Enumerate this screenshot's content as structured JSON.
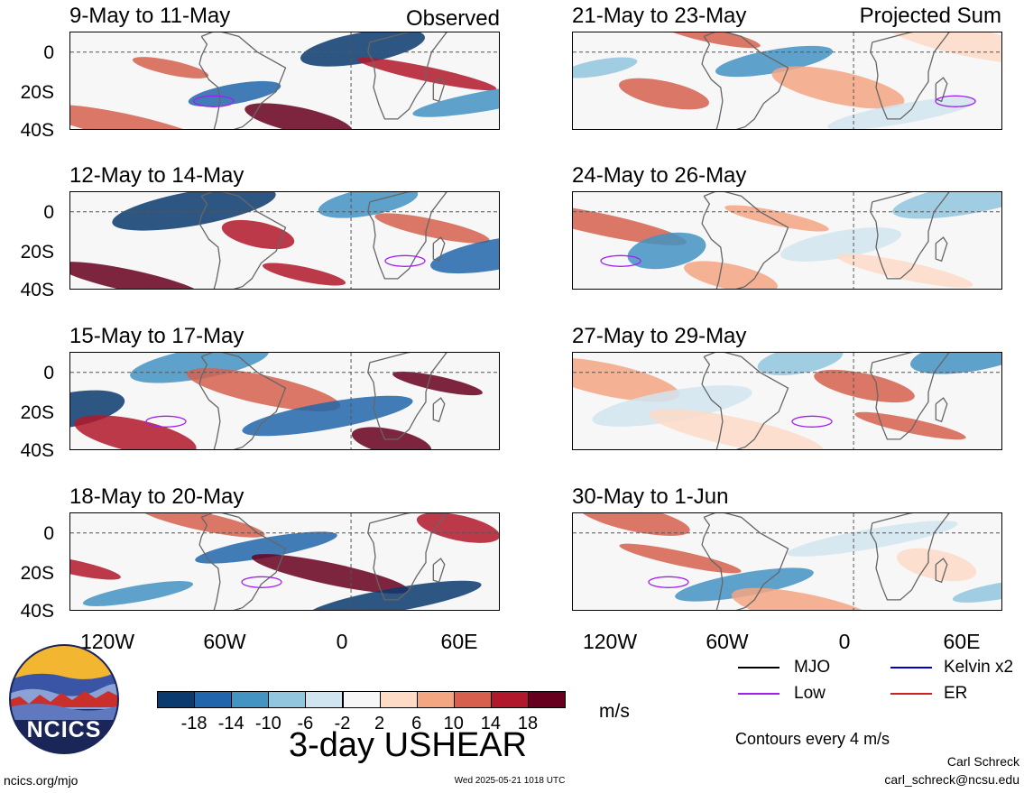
{
  "panels": [
    {
      "title": "9-May to 11-May",
      "tag": "Observed",
      "column": "observed"
    },
    {
      "title": "12-May to 14-May",
      "tag": "",
      "column": "observed"
    },
    {
      "title": "15-May to 17-May",
      "tag": "",
      "column": "observed"
    },
    {
      "title": "18-May to 20-May",
      "tag": "",
      "column": "observed"
    },
    {
      "title": "21-May to 23-May",
      "tag": "Projected Sum",
      "column": "projected"
    },
    {
      "title": "24-May to 26-May",
      "tag": "",
      "column": "projected"
    },
    {
      "title": "27-May to 29-May",
      "tag": "",
      "column": "projected"
    },
    {
      "title": "30-May to 1-Jun",
      "tag": "",
      "column": "projected"
    }
  ],
  "y_axis": {
    "ticks": [
      "0",
      "20S",
      "40S"
    ]
  },
  "x_axis": {
    "ticks": [
      "120W",
      "60W",
      "0",
      "60E"
    ]
  },
  "colorbar": {
    "labels": [
      "-18",
      "-14",
      "-10",
      "-6",
      "-2",
      "2",
      "6",
      "10",
      "14",
      "18"
    ],
    "colors": [
      "#0b3a6e",
      "#2166ac",
      "#4393c3",
      "#92c5de",
      "#d1e5f0",
      "#f7f7f7",
      "#fddbc7",
      "#f4a582",
      "#d6604d",
      "#b2182b",
      "#67001f"
    ],
    "units": "m/s"
  },
  "legend": [
    {
      "label": "MJO",
      "color": "#000000"
    },
    {
      "label": "Kelvin x2",
      "color": "#0000cc"
    },
    {
      "label": "Low",
      "color": "#a020f0"
    },
    {
      "label": "ER",
      "color": "#cc2222"
    }
  ],
  "main_title": "3-day USHEAR",
  "contour_note": "Contours every 4 m/s",
  "logo_text": "NCICS",
  "footer": {
    "url": "ncics.org/mjo",
    "timestamp": "Wed 2025-05-21 1018 UTC",
    "author": "Carl Schreck",
    "email": "carl_schreck@ncsu.edu"
  }
}
